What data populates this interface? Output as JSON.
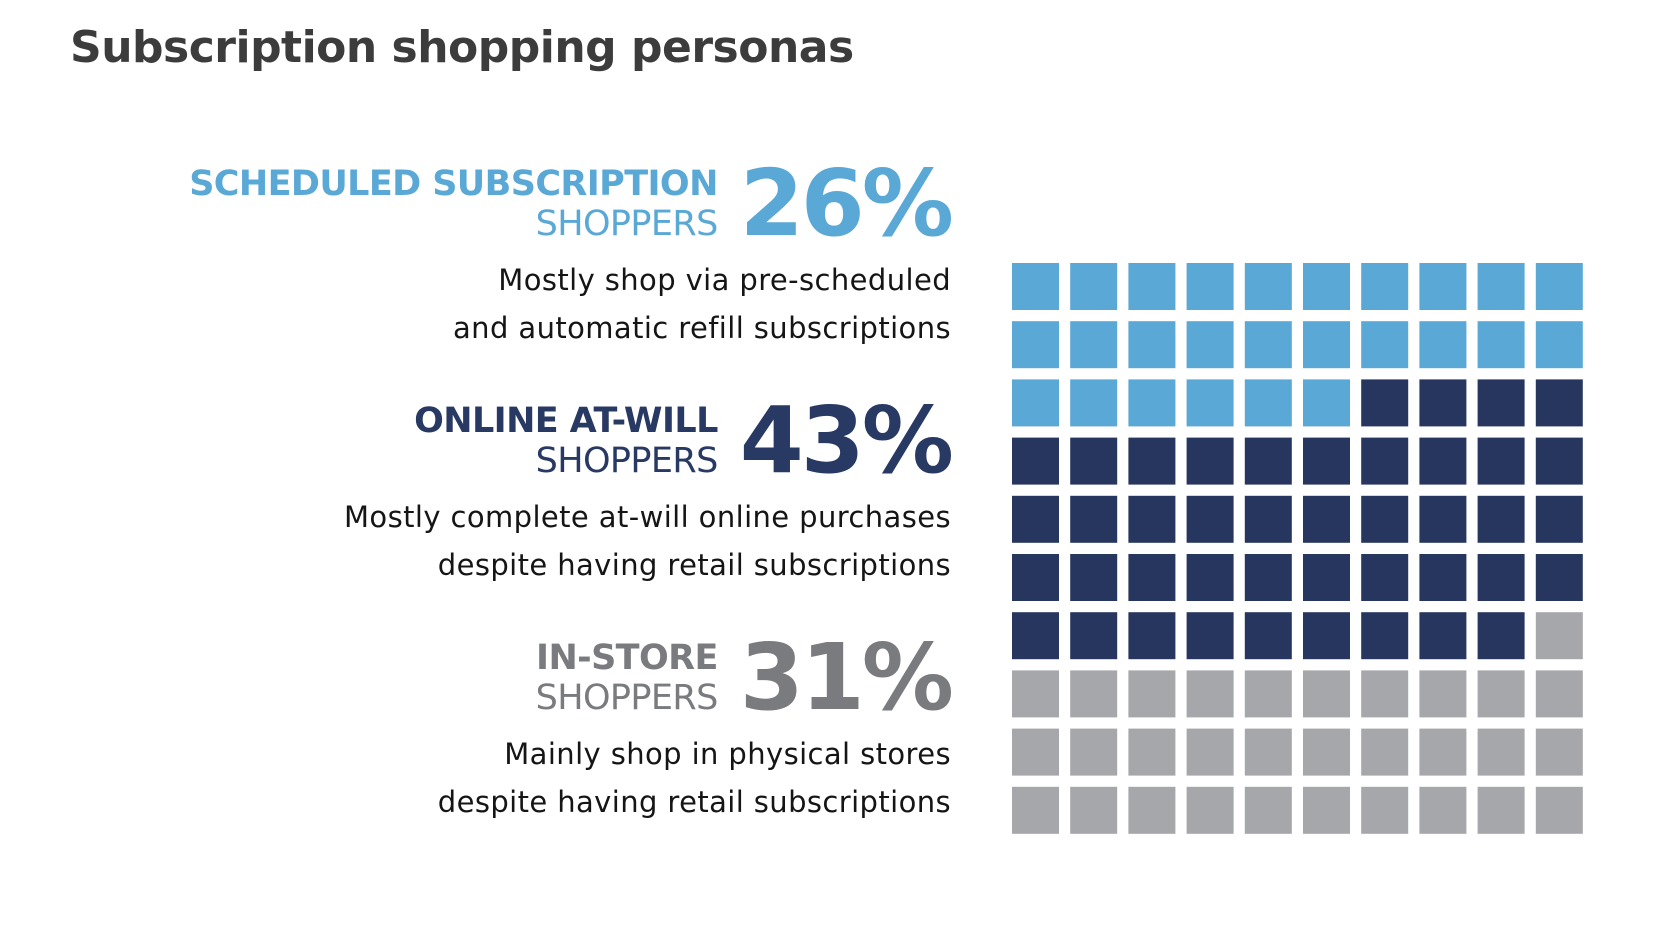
{
  "title": "Subscription shopping personas",
  "chart_data": {
    "type": "waffle",
    "grid": {
      "rows": 10,
      "cols": 10
    },
    "unit_value": 1,
    "series": [
      {
        "name_line1": "SCHEDULED SUBSCRIPTION",
        "name_line2": "SHOPPERS",
        "value": 26,
        "label": "26%",
        "color": "#5aa8d6",
        "description": [
          "Mostly shop via pre-scheduled",
          "and automatic refill subscriptions"
        ]
      },
      {
        "name_line1": "ONLINE AT-WILL",
        "name_line2": "SHOPPERS",
        "value": 43,
        "label": "43%",
        "color": "#27365e",
        "description": [
          "Mostly complete at-will online purchases",
          "despite having retail subscriptions"
        ]
      },
      {
        "name_line1": "IN-STORE",
        "name_line2": "SHOPPERS",
        "value": 31,
        "label": "31%",
        "color": "#a6a7aa",
        "description": [
          "Mainly shop in physical stores",
          "despite having retail subscriptions"
        ]
      }
    ]
  }
}
